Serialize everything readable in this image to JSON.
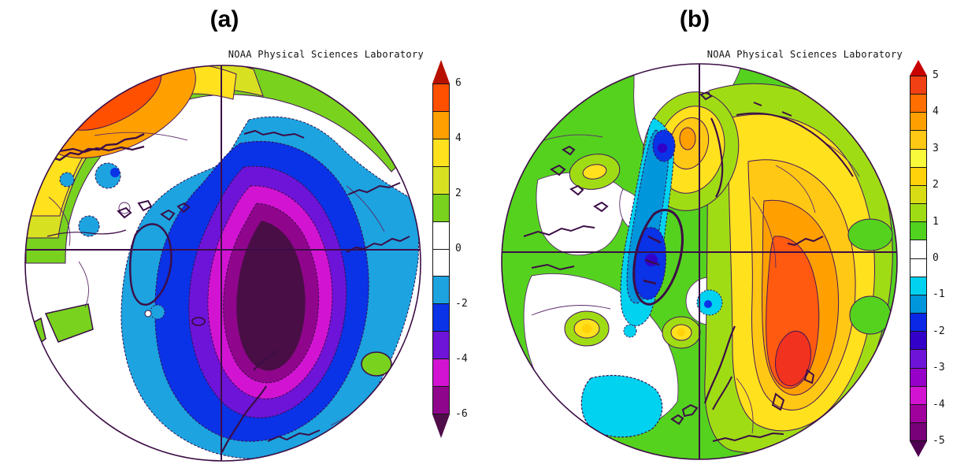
{
  "figure_type": "Two-panel polar stereographic anomaly composite",
  "panels": [
    {
      "label": "(a)",
      "watermark": "NOAA Physical Sciences Laboratory",
      "colorbar": {
        "orientation": "vertical",
        "value_range": [
          -6,
          6
        ],
        "segment_step": 1,
        "tick_labels": [
          "6",
          "4",
          "2",
          "0",
          "-2",
          "-4",
          "-6"
        ],
        "segment_colors_top_to_bottom": [
          "#ff5000",
          "#ffa000",
          "#ffe11e",
          "#d7e121",
          "#78d21e",
          "#ffffff",
          "#ffffff",
          "#1ca3e0",
          "#0a32e6",
          "#6e14d8",
          "#d214d2",
          "#8f068c"
        ],
        "top_arrow_color": "#b81000",
        "bottom_arrow_color": "#4f0d49"
      }
    },
    {
      "label": "(b)",
      "watermark": "NOAA Physical Sciences Laboratory",
      "colorbar": {
        "orientation": "vertical",
        "value_range": [
          -5,
          5
        ],
        "segment_step": 0.5,
        "tick_labels": [
          "5",
          "4",
          "3",
          "2",
          "1",
          "0",
          "-1",
          "-2",
          "-3",
          "-4",
          "-5"
        ],
        "segment_colors_top_to_bottom": [
          "#f04014",
          "#ff6e00",
          "#ffa000",
          "#ffc814",
          "#fafa3c",
          "#ffd20a",
          "#d7dc14",
          "#a0dc14",
          "#50d21e",
          "#ffffff",
          "#ffffff",
          "#00d2f0",
          "#0096dc",
          "#0a28e6",
          "#3200c8",
          "#6e14d8",
          "#9600c8",
          "#d214d2",
          "#a0009b",
          "#780078"
        ],
        "top_arrow_color": "#c80000",
        "bottom_arrow_color": "#500050"
      }
    }
  ],
  "map_palette": {
    "white": "#ffffff",
    "red": "#d21000",
    "red_b": "#f0321e",
    "orange_red": "#ff5000",
    "orange_red_b": "#ff5a0f",
    "orange": "#ffa000",
    "amber": "#ffc814",
    "yellow": "#ffe11e",
    "gold": "#ffd20a",
    "yellow_green": "#d7e121",
    "chartreuse": "#a0dc14",
    "green": "#78d21e",
    "green_b": "#55d21e",
    "cyan_light": "#00d2f0",
    "cyan": "#1ca3e0",
    "blue_medium": "#0096dc",
    "blue": "#0a32e6",
    "indigo": "#3200c8",
    "violet": "#6e14d8",
    "magenta": "#d214d2",
    "magenta_dark": "#8f068c",
    "core_dark": "#4a0e46",
    "coast": "#3c0d46",
    "contour": "#5a2a6a"
  },
  "map_features": {
    "panel_a": [
      "Strong positive anomaly center (above +6) near the upper-left rim",
      "Yellow-to-green positive band along the entire upper rim",
      "Broad deep negative anomaly (below -6) covering the central Arctic and extending to the lower rim",
      "Scattered weak negative pockets (-2) in the white left sector",
      "Small positive green patches near the lower-left and lower-right rim"
    ],
    "panel_b": [
      "Weak positive anomalies (+1 to +2, green) over most of the map",
      "Strong positive center (up to +5, red core) in the lower-right sector",
      "Localized negative centers (to about -2) left of center and near top-center",
      "Concentric positive spot (+3) just left of the top of the vertical meridian",
      "Weak negative (-1) pocket in the lower-left white sector"
    ]
  }
}
